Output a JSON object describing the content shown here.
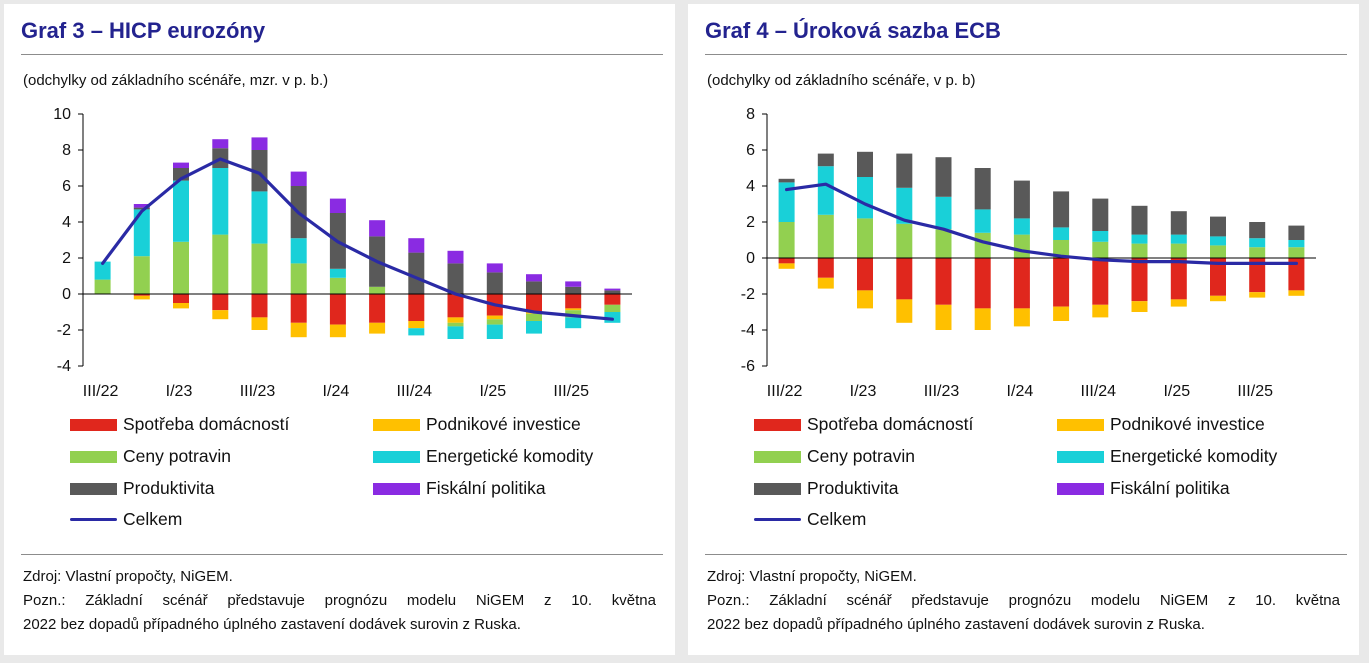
{
  "panels": [
    {
      "title": "Graf 3 – HICP eurozóny",
      "subtitle": "(odchylky od základního scénáře, mzr. v p. b.)",
      "source": "Zdroj: Vlastní propočty, NiGEM.",
      "note_line1": "Pozn.: Základní scénář představuje prognózu modelu NiGEM z 10. května",
      "note_line2": "2022 bez dopadů případného úplného zastavení dodávek surovin z Ruska."
    },
    {
      "title": "Graf 4 – Úroková sazba ECB",
      "subtitle": "(odchylky od základního scénáře, v p. b)",
      "source": "Zdroj: Vlastní propočty, NiGEM.",
      "note_line1": "Pozn.: Základní scénář představuje prognózu modelu NiGEM z 10. května",
      "note_line2": "2022 bez dopadů případného úplného zastavení dodávek surovin z Ruska."
    }
  ],
  "legend": {
    "spotreba": "Spotřeba domácností",
    "investice": "Podnikové investice",
    "potraviny": "Ceny potravin",
    "energie": "Energetické komodity",
    "produktivita": "Produktivita",
    "fiskal": "Fiskální politika",
    "celkem": "Celkem"
  },
  "colors": {
    "title": "#23238f",
    "spotreba": "#e0271d",
    "investice": "#ffc000",
    "potraviny": "#92d050",
    "energie": "#19d0d8",
    "produktivita": "#595959",
    "fiskal": "#8a2be2",
    "celkem": "#2a2aa5"
  },
  "chart_data": [
    {
      "type": "bar",
      "stacked": true,
      "categories": [
        "III/22",
        "IV/22",
        "I/23",
        "II/23",
        "III/23",
        "IV/23",
        "I/24",
        "II/24",
        "III/24",
        "IV/24",
        "I/25",
        "II/25",
        "III/25",
        "IV/25"
      ],
      "xtick_labels": [
        "III/22",
        "I/23",
        "III/23",
        "I/24",
        "III/24",
        "I/25",
        "III/25"
      ],
      "ylim": [
        -4,
        10
      ],
      "yticks": [
        -4,
        -2,
        0,
        2,
        4,
        6,
        8,
        10
      ],
      "series": [
        {
          "name": "Spotřeba domácností",
          "key": "spotreba",
          "values": [
            0,
            -0.1,
            -0.5,
            -0.9,
            -1.3,
            -1.6,
            -1.7,
            -1.6,
            -1.5,
            -1.3,
            -1.2,
            -1.0,
            -0.8,
            -0.6
          ]
        },
        {
          "name": "Podnikové investice",
          "key": "investice",
          "values": [
            0,
            -0.2,
            -0.3,
            -0.5,
            -0.7,
            -0.8,
            -0.7,
            -0.6,
            -0.4,
            -0.3,
            -0.2,
            -0.1,
            -0.1,
            0
          ]
        },
        {
          "name": "Ceny potravin",
          "key": "potraviny",
          "values": [
            0.8,
            2.1,
            2.9,
            3.3,
            2.8,
            1.7,
            0.9,
            0.4,
            0,
            -0.2,
            -0.3,
            -0.4,
            -0.4,
            -0.4
          ]
        },
        {
          "name": "Energetické komodity",
          "key": "energie",
          "values": [
            1.0,
            2.6,
            3.4,
            3.7,
            2.9,
            1.4,
            0.5,
            0,
            -0.4,
            -0.7,
            -0.8,
            -0.7,
            -0.6,
            -0.6
          ]
        },
        {
          "name": "Produktivita",
          "key": "produktivita",
          "values": [
            0,
            0.1,
            0.7,
            1.1,
            2.3,
            2.9,
            3.1,
            2.8,
            2.3,
            1.7,
            1.2,
            0.7,
            0.4,
            0.2
          ]
        },
        {
          "name": "Fiskální politika",
          "key": "fiskal",
          "values": [
            0,
            0.2,
            0.3,
            0.5,
            0.7,
            0.8,
            0.8,
            0.9,
            0.8,
            0.7,
            0.5,
            0.4,
            0.3,
            0.1
          ]
        }
      ],
      "line": {
        "name": "Celkem",
        "key": "celkem",
        "values": [
          1.7,
          4.6,
          6.4,
          7.5,
          6.7,
          4.5,
          2.9,
          1.8,
          0.9,
          0.0,
          -0.6,
          -1.0,
          -1.2,
          -1.4
        ]
      }
    },
    {
      "type": "bar",
      "stacked": true,
      "categories": [
        "III/22",
        "IV/22",
        "I/23",
        "II/23",
        "III/23",
        "IV/23",
        "I/24",
        "II/24",
        "III/24",
        "IV/24",
        "I/25",
        "II/25",
        "III/25",
        "IV/25"
      ],
      "xtick_labels": [
        "III/22",
        "I/23",
        "III/23",
        "I/24",
        "III/24",
        "I/25",
        "III/25"
      ],
      "ylim": [
        -6,
        8
      ],
      "yticks": [
        -6,
        -4,
        -2,
        0,
        2,
        4,
        6,
        8
      ],
      "series": [
        {
          "name": "Spotřeba domácností",
          "key": "spotreba",
          "values": [
            -0.3,
            -1.1,
            -1.8,
            -2.3,
            -2.6,
            -2.8,
            -2.8,
            -2.7,
            -2.6,
            -2.4,
            -2.3,
            -2.1,
            -1.9,
            -1.8
          ]
        },
        {
          "name": "Podnikové investice",
          "key": "investice",
          "values": [
            -0.3,
            -0.6,
            -1.0,
            -1.3,
            -1.4,
            -1.2,
            -1.0,
            -0.8,
            -0.7,
            -0.6,
            -0.4,
            -0.3,
            -0.3,
            -0.3
          ]
        },
        {
          "name": "Ceny potravin",
          "key": "potraviny",
          "values": [
            2.0,
            2.4,
            2.2,
            1.9,
            1.6,
            1.4,
            1.3,
            1.0,
            0.9,
            0.8,
            0.8,
            0.7,
            0.6,
            0.6
          ]
        },
        {
          "name": "Energetické komodity",
          "key": "energie",
          "values": [
            2.2,
            2.7,
            2.3,
            2.0,
            1.8,
            1.3,
            0.9,
            0.7,
            0.6,
            0.5,
            0.5,
            0.5,
            0.5,
            0.4
          ]
        },
        {
          "name": "Produktivita",
          "key": "produktivita",
          "values": [
            0.2,
            0.7,
            1.4,
            1.9,
            2.2,
            2.3,
            2.1,
            2.0,
            1.8,
            1.6,
            1.3,
            1.1,
            0.9,
            0.8
          ]
        },
        {
          "name": "Fiskální politika",
          "key": "fiskal",
          "values": [
            0,
            0,
            0,
            0,
            0,
            0,
            0,
            0,
            0,
            0,
            0,
            0,
            0,
            0
          ]
        }
      ],
      "line": {
        "name": "Celkem",
        "key": "celkem",
        "values": [
          3.8,
          4.1,
          3.0,
          2.1,
          1.6,
          0.9,
          0.4,
          0.1,
          -0.1,
          -0.2,
          -0.2,
          -0.3,
          -0.3,
          -0.3
        ]
      }
    }
  ]
}
